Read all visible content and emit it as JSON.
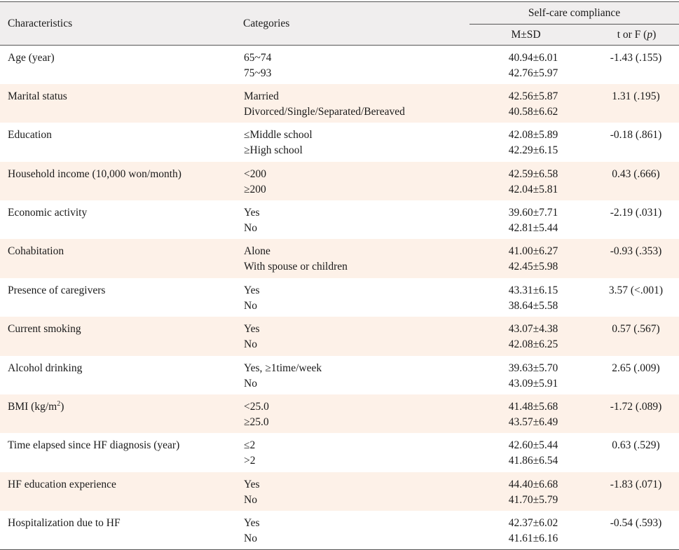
{
  "header": {
    "col_characteristics": "Characteristics",
    "col_categories": "Categories",
    "group": "Self-care compliance",
    "col_msd": "M±SD",
    "col_stat_prefix": "t or F (",
    "col_stat_p": "p",
    "col_stat_suffix": ")"
  },
  "rows": [
    {
      "characteristic": "Age (year)",
      "categories": [
        "65~74",
        "75~93"
      ],
      "msd": [
        "40.94±6.01",
        "42.76±5.97"
      ],
      "stat": "-1.43 (.155)"
    },
    {
      "characteristic": "Marital status",
      "categories": [
        "Married",
        "Divorced/Single/Separated/Bereaved"
      ],
      "msd": [
        "42.56±5.87",
        "40.58±6.62"
      ],
      "stat": "1.31 (.195)"
    },
    {
      "characteristic": "Education",
      "categories": [
        "≤Middle school",
        "≥High school"
      ],
      "msd": [
        "42.08±5.89",
        "42.29±6.15"
      ],
      "stat": "-0.18 (.861)"
    },
    {
      "characteristic": "Household income (10,000 won/month)",
      "categories": [
        "<200",
        "≥200"
      ],
      "msd": [
        "42.59±6.58",
        "42.04±5.81"
      ],
      "stat": "0.43 (.666)"
    },
    {
      "characteristic": "Economic activity",
      "categories": [
        "Yes",
        "No"
      ],
      "msd": [
        "39.60±7.71",
        "42.81±5.44"
      ],
      "stat": "-2.19 (.031)"
    },
    {
      "characteristic": "Cohabitation",
      "categories": [
        "Alone",
        "With spouse or children"
      ],
      "msd": [
        "41.00±6.27",
        "42.45±5.98"
      ],
      "stat": "-0.93 (.353)"
    },
    {
      "characteristic": "Presence of caregivers",
      "categories": [
        "Yes",
        "No"
      ],
      "msd": [
        "43.31±6.15",
        "38.64±5.58"
      ],
      "stat": "3.57 (<.001)"
    },
    {
      "characteristic": "Current smoking",
      "categories": [
        "Yes",
        "No"
      ],
      "msd": [
        "43.07±4.38",
        "42.08±6.25"
      ],
      "stat": "0.57 (.567)"
    },
    {
      "characteristic": "Alcohol drinking",
      "categories": [
        "Yes, ≥1time/week",
        "No"
      ],
      "msd": [
        "39.63±5.70",
        "43.09±5.91"
      ],
      "stat": "2.65 (.009)"
    },
    {
      "characteristic": "BMI (kg/m",
      "characteristic_sup": "2",
      "characteristic_suffix": ")",
      "categories": [
        "<25.0",
        "≥25.0"
      ],
      "msd": [
        "41.48±5.68",
        "43.57±6.49"
      ],
      "stat": "-1.72 (.089)"
    },
    {
      "characteristic": "Time elapsed since HF diagnosis (year)",
      "categories": [
        "≤2",
        ">2"
      ],
      "msd": [
        "42.60±5.44",
        "41.86±6.54"
      ],
      "stat": "0.63 (.529)"
    },
    {
      "characteristic": "HF education experience",
      "categories": [
        "Yes",
        "No"
      ],
      "msd": [
        "44.40±6.68",
        "41.70±5.79"
      ],
      "stat": "-1.83 (.071)"
    },
    {
      "characteristic": "Hospitalization due to HF",
      "categories": [
        "Yes",
        "No"
      ],
      "msd": [
        "42.37±6.02",
        "41.61±6.16"
      ],
      "stat": "-0.54 (.593)"
    }
  ]
}
